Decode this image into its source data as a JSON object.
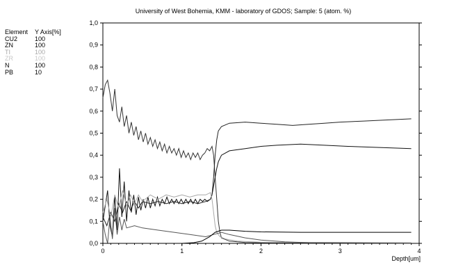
{
  "chart_data": {
    "type": "line",
    "title": "University of West Bohemia, KMM - laboratory of GDOS;  Sample: 5 (atom. %)",
    "xlabel": "Depth[um]",
    "ylabel": "",
    "xlim": [
      0,
      4
    ],
    "ylim": [
      0,
      1.0
    ],
    "x_ticks": [
      "0",
      "1",
      "2",
      "3",
      "4"
    ],
    "y_ticks": [
      "0,0",
      "0,1",
      "0,2",
      "0,3",
      "0,4",
      "0,5",
      "0,6",
      "0,7",
      "0,8",
      "0,9",
      "1,0"
    ],
    "grid": false,
    "legend": {
      "placement": "left",
      "header": {
        "element": "Element",
        "axis": "Y Axis[%]"
      },
      "entries": [
        {
          "element": "CU2",
          "axis": "100",
          "color": "#000000"
        },
        {
          "element": "ZN",
          "axis": "100",
          "color": "#000000"
        },
        {
          "element": "TI",
          "axis": "100",
          "color": "#a8a8a8"
        },
        {
          "element": "ZR",
          "axis": "100",
          "color": "#c8c8c8"
        },
        {
          "element": "N",
          "axis": "100",
          "color": "#000000"
        },
        {
          "element": "PB",
          "axis": "10",
          "color": "#000000"
        }
      ]
    },
    "series": [
      {
        "color": "#333333",
        "points": [
          [
            0,
            0.66
          ],
          [
            0.03,
            0.72
          ],
          [
            0.06,
            0.74
          ],
          [
            0.09,
            0.68
          ],
          [
            0.12,
            0.6
          ],
          [
            0.15,
            0.7
          ],
          [
            0.18,
            0.58
          ],
          [
            0.21,
            0.55
          ],
          [
            0.24,
            0.62
          ],
          [
            0.27,
            0.53
          ],
          [
            0.3,
            0.58
          ],
          [
            0.33,
            0.5
          ],
          [
            0.36,
            0.55
          ],
          [
            0.39,
            0.49
          ],
          [
            0.42,
            0.53
          ],
          [
            0.45,
            0.47
          ],
          [
            0.48,
            0.51
          ],
          [
            0.51,
            0.46
          ],
          [
            0.54,
            0.5
          ],
          [
            0.57,
            0.45
          ],
          [
            0.6,
            0.48
          ],
          [
            0.63,
            0.44
          ],
          [
            0.66,
            0.47
          ],
          [
            0.69,
            0.43
          ],
          [
            0.72,
            0.46
          ],
          [
            0.75,
            0.42
          ],
          [
            0.78,
            0.45
          ],
          [
            0.81,
            0.41
          ],
          [
            0.84,
            0.44
          ],
          [
            0.87,
            0.41
          ],
          [
            0.9,
            0.43
          ],
          [
            0.93,
            0.4
          ],
          [
            0.96,
            0.43
          ],
          [
            0.99,
            0.39
          ],
          [
            1.02,
            0.42
          ],
          [
            1.05,
            0.39
          ],
          [
            1.08,
            0.41
          ],
          [
            1.11,
            0.38
          ],
          [
            1.14,
            0.41
          ],
          [
            1.17,
            0.39
          ],
          [
            1.2,
            0.41
          ],
          [
            1.23,
            0.38
          ],
          [
            1.26,
            0.4
          ],
          [
            1.29,
            0.41
          ],
          [
            1.32,
            0.43
          ],
          [
            1.35,
            0.42
          ],
          [
            1.38,
            0.44
          ],
          [
            1.4,
            0.4
          ],
          [
            1.42,
            0.3
          ],
          [
            1.44,
            0.2
          ],
          [
            1.46,
            0.1
          ],
          [
            1.48,
            0.05
          ],
          [
            1.5,
            0.025
          ],
          [
            1.6,
            0.01
          ],
          [
            1.8,
            0.004
          ],
          [
            2.2,
            0.002
          ],
          [
            3.9,
            0.002
          ]
        ]
      },
      {
        "color": "#111111",
        "points": [
          [
            0,
            0.1
          ],
          [
            0.03,
            0.17
          ],
          [
            0.06,
            0.24
          ],
          [
            0.09,
            0.08
          ],
          [
            0.12,
            0.03
          ],
          [
            0.15,
            0.22
          ],
          [
            0.18,
            0.06
          ],
          [
            0.21,
            0.34
          ],
          [
            0.24,
            0.12
          ],
          [
            0.27,
            0.28
          ],
          [
            0.3,
            0.1
          ],
          [
            0.33,
            0.24
          ],
          [
            0.36,
            0.14
          ],
          [
            0.39,
            0.22
          ],
          [
            0.42,
            0.13
          ],
          [
            0.45,
            0.21
          ],
          [
            0.48,
            0.15
          ],
          [
            0.51,
            0.2
          ],
          [
            0.54,
            0.16
          ],
          [
            0.57,
            0.21
          ],
          [
            0.6,
            0.16
          ],
          [
            0.63,
            0.2
          ],
          [
            0.66,
            0.17
          ],
          [
            0.69,
            0.21
          ],
          [
            0.72,
            0.17
          ],
          [
            0.75,
            0.2
          ],
          [
            0.78,
            0.18
          ],
          [
            0.81,
            0.21
          ],
          [
            0.84,
            0.18
          ],
          [
            0.87,
            0.2
          ],
          [
            0.9,
            0.18
          ],
          [
            0.93,
            0.2
          ],
          [
            0.96,
            0.18
          ],
          [
            0.99,
            0.2
          ],
          [
            1.02,
            0.18
          ],
          [
            1.05,
            0.2
          ],
          [
            1.08,
            0.18
          ],
          [
            1.11,
            0.2
          ],
          [
            1.14,
            0.18
          ],
          [
            1.17,
            0.2
          ],
          [
            1.2,
            0.18
          ],
          [
            1.23,
            0.2
          ],
          [
            1.26,
            0.19
          ],
          [
            1.29,
            0.2
          ],
          [
            1.32,
            0.19
          ],
          [
            1.36,
            0.2
          ],
          [
            1.38,
            0.22
          ],
          [
            1.4,
            0.26
          ],
          [
            1.42,
            0.3
          ],
          [
            1.44,
            0.34
          ],
          [
            1.46,
            0.37
          ],
          [
            1.5,
            0.4
          ],
          [
            1.6,
            0.42
          ],
          [
            1.8,
            0.43
          ],
          [
            2.0,
            0.44
          ],
          [
            2.2,
            0.445
          ],
          [
            2.5,
            0.45
          ],
          [
            2.8,
            0.445
          ],
          [
            3.1,
            0.44
          ],
          [
            3.5,
            0.435
          ],
          [
            3.9,
            0.43
          ]
        ]
      },
      {
        "color": "#222222",
        "points": [
          [
            0,
            0.12
          ],
          [
            0.05,
            0.08
          ],
          [
            0.1,
            0.14
          ],
          [
            0.15,
            0.1
          ],
          [
            0.2,
            0.18
          ],
          [
            0.25,
            0.14
          ],
          [
            0.3,
            0.19
          ],
          [
            0.35,
            0.15
          ],
          [
            0.4,
            0.19
          ],
          [
            0.45,
            0.16
          ],
          [
            0.5,
            0.19
          ],
          [
            0.6,
            0.18
          ],
          [
            0.7,
            0.19
          ],
          [
            0.8,
            0.18
          ],
          [
            0.9,
            0.19
          ],
          [
            1.0,
            0.18
          ],
          [
            1.1,
            0.19
          ],
          [
            1.2,
            0.18
          ],
          [
            1.3,
            0.19
          ],
          [
            1.36,
            0.2
          ],
          [
            1.38,
            0.22
          ],
          [
            1.4,
            0.3
          ],
          [
            1.42,
            0.4
          ],
          [
            1.44,
            0.47
          ],
          [
            1.46,
            0.51
          ],
          [
            1.5,
            0.53
          ],
          [
            1.6,
            0.545
          ],
          [
            1.8,
            0.55
          ],
          [
            2.0,
            0.545
          ],
          [
            2.2,
            0.54
          ],
          [
            2.4,
            0.535
          ],
          [
            2.6,
            0.54
          ],
          [
            2.8,
            0.545
          ],
          [
            3.0,
            0.55
          ],
          [
            3.3,
            0.555
          ],
          [
            3.6,
            0.56
          ],
          [
            3.9,
            0.565
          ]
        ]
      },
      {
        "color": "#a8a8a8",
        "points": [
          [
            0,
            0.14
          ],
          [
            0.05,
            0.2
          ],
          [
            0.1,
            0.12
          ],
          [
            0.15,
            0.22
          ],
          [
            0.2,
            0.16
          ],
          [
            0.25,
            0.24
          ],
          [
            0.3,
            0.17
          ],
          [
            0.35,
            0.22
          ],
          [
            0.4,
            0.18
          ],
          [
            0.45,
            0.22
          ],
          [
            0.5,
            0.19
          ],
          [
            0.6,
            0.22
          ],
          [
            0.7,
            0.2
          ],
          [
            0.8,
            0.22
          ],
          [
            0.9,
            0.21
          ],
          [
            1.0,
            0.22
          ],
          [
            1.1,
            0.21
          ],
          [
            1.2,
            0.22
          ],
          [
            1.3,
            0.22
          ],
          [
            1.36,
            0.23
          ],
          [
            1.38,
            0.2
          ],
          [
            1.4,
            0.14
          ],
          [
            1.42,
            0.08
          ],
          [
            1.44,
            0.05
          ],
          [
            1.48,
            0.03
          ],
          [
            1.55,
            0.02
          ],
          [
            1.7,
            0.01
          ],
          [
            2.0,
            0.005
          ],
          [
            3.9,
            0.003
          ]
        ]
      },
      {
        "color": "#555555",
        "points": [
          [
            0,
            0.1
          ],
          [
            0.03,
            0.04
          ],
          [
            0.06,
            0.0
          ],
          [
            0.09,
            0.12
          ],
          [
            0.12,
            0.02
          ],
          [
            0.15,
            0.16
          ],
          [
            0.18,
            0.04
          ],
          [
            0.21,
            0.12
          ],
          [
            0.24,
            0.06
          ],
          [
            0.27,
            0.11
          ],
          [
            0.3,
            0.07
          ],
          [
            0.4,
            0.08
          ],
          [
            0.5,
            0.07
          ],
          [
            0.7,
            0.06
          ],
          [
            0.9,
            0.05
          ],
          [
            1.1,
            0.04
          ],
          [
            1.3,
            0.03
          ],
          [
            1.4,
            0.04
          ],
          [
            1.5,
            0.05
          ],
          [
            1.6,
            0.04
          ],
          [
            1.8,
            0.025
          ],
          [
            2.0,
            0.015
          ],
          [
            2.3,
            0.007
          ],
          [
            2.6,
            0.003
          ],
          [
            3.9,
            0.001
          ]
        ]
      },
      {
        "color": "#000000",
        "points": [
          [
            0,
            0.0
          ],
          [
            1.0,
            0.0
          ],
          [
            1.15,
            0.003
          ],
          [
            1.25,
            0.01
          ],
          [
            1.35,
            0.03
          ],
          [
            1.42,
            0.05
          ],
          [
            1.5,
            0.06
          ],
          [
            1.6,
            0.06
          ],
          [
            1.8,
            0.055
          ],
          [
            2.0,
            0.052
          ],
          [
            2.5,
            0.05
          ],
          [
            3.0,
            0.05
          ],
          [
            3.5,
            0.05
          ],
          [
            3.9,
            0.05
          ]
        ]
      }
    ]
  }
}
